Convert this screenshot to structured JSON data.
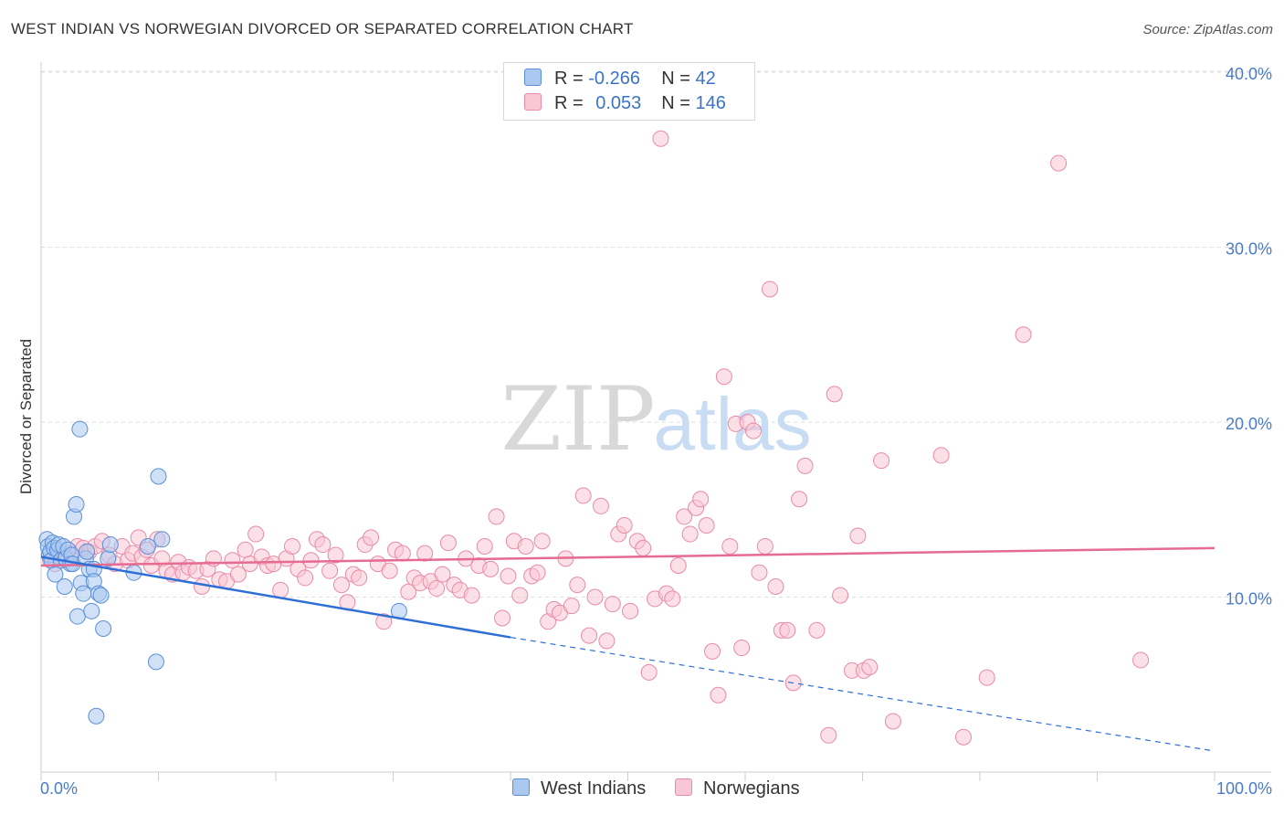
{
  "title": "WEST INDIAN VS NORWEGIAN DIVORCED OR SEPARATED CORRELATION CHART",
  "source": "Source: ZipAtlas.com",
  "watermark": {
    "part1": "ZIP",
    "part2": "atlas"
  },
  "legend_stats": {
    "rows": [
      {
        "r_label": "R =",
        "r_value": "-0.266",
        "n_label": "N =",
        "n_value": "42"
      },
      {
        "r_label": "R =",
        "r_value": "0.053",
        "n_label": "N =",
        "n_value": "146"
      }
    ]
  },
  "bottom_legend": {
    "west_indians": "West Indians",
    "norwegians": "Norwegians"
  },
  "colors": {
    "west_indians_fill": "#aac8f0",
    "west_indians_stroke": "#5b8fd6",
    "west_indians_line": "#2e6fd6",
    "norwegians_fill": "#f9c6d6",
    "norwegians_stroke": "#e88aa8",
    "norwegians_line": "#e56b93",
    "tick_label": "#4a7cc7",
    "grid": "#dddddd"
  },
  "chart_data": {
    "type": "scatter",
    "title": "WEST INDIAN VS NORWEGIAN DIVORCED OR SEPARATED CORRELATION CHART",
    "xlabel": "",
    "ylabel": "Divorced or Separated",
    "xlim": [
      0,
      100
    ],
    "ylim": [
      0,
      42
    ],
    "x_tick_labels": [
      "0.0%",
      "100.0%"
    ],
    "y_ticks": [
      10,
      20,
      30,
      40
    ],
    "y_tick_labels": [
      "10.0%",
      "20.0%",
      "30.0%",
      "40.0%"
    ],
    "grid": true,
    "series": [
      {
        "name": "West Indians",
        "r": -0.266,
        "n": 42,
        "trend": {
          "x0": 0,
          "y0": 12.3,
          "x1": 40,
          "y1": 7.7,
          "dashed_to_x": 100,
          "dashed_to_y": 1.2
        },
        "points": [
          [
            0.5,
            13.3
          ],
          [
            0.6,
            12.9
          ],
          [
            0.7,
            12.4
          ],
          [
            0.8,
            12.6
          ],
          [
            0.9,
            12.1
          ],
          [
            1.0,
            13.1
          ],
          [
            1.1,
            12.8
          ],
          [
            1.2,
            11.3
          ],
          [
            1.4,
            12.7
          ],
          [
            1.5,
            13.0
          ],
          [
            1.7,
            12.1
          ],
          [
            1.9,
            12.9
          ],
          [
            2.0,
            10.6
          ],
          [
            2.1,
            12.2
          ],
          [
            2.3,
            12.7
          ],
          [
            2.5,
            11.9
          ],
          [
            2.6,
            12.4
          ],
          [
            2.7,
            11.9
          ],
          [
            2.8,
            14.6
          ],
          [
            3.0,
            15.3
          ],
          [
            3.1,
            8.9
          ],
          [
            3.3,
            19.6
          ],
          [
            3.4,
            10.8
          ],
          [
            3.6,
            10.2
          ],
          [
            3.8,
            12.2
          ],
          [
            3.9,
            12.6
          ],
          [
            4.1,
            11.6
          ],
          [
            4.3,
            9.2
          ],
          [
            4.5,
            11.6
          ],
          [
            4.5,
            10.9
          ],
          [
            4.7,
            3.2
          ],
          [
            4.9,
            10.2
          ],
          [
            5.1,
            10.1
          ],
          [
            5.3,
            8.2
          ],
          [
            5.7,
            12.2
          ],
          [
            5.9,
            13.0
          ],
          [
            7.9,
            11.4
          ],
          [
            9.1,
            12.9
          ],
          [
            9.8,
            6.3
          ],
          [
            10.0,
            16.9
          ],
          [
            10.3,
            13.3
          ],
          [
            30.5,
            9.2
          ]
        ]
      },
      {
        "name": "Norwegians",
        "r": 0.053,
        "n": 146,
        "trend": {
          "x0": 0,
          "y0": 11.8,
          "x1": 100,
          "y1": 12.8
        },
        "points": [
          [
            0.8,
            12.1
          ],
          [
            1.2,
            11.9
          ],
          [
            1.6,
            12.3
          ],
          [
            2.1,
            12.1
          ],
          [
            2.6,
            12.5
          ],
          [
            3.1,
            12.9
          ],
          [
            3.6,
            12.8
          ],
          [
            4.1,
            12.6
          ],
          [
            4.6,
            12.9
          ],
          [
            5.2,
            13.2
          ],
          [
            5.8,
            12.4
          ],
          [
            6.3,
            11.9
          ],
          [
            6.9,
            12.9
          ],
          [
            7.4,
            12.1
          ],
          [
            7.8,
            12.5
          ],
          [
            8.3,
            13.4
          ],
          [
            8.6,
            12.3
          ],
          [
            9.0,
            12.7
          ],
          [
            9.4,
            11.8
          ],
          [
            9.9,
            13.3
          ],
          [
            10.3,
            12.2
          ],
          [
            10.7,
            11.5
          ],
          [
            11.2,
            11.3
          ],
          [
            11.7,
            12.0
          ],
          [
            12.1,
            11.4
          ],
          [
            12.6,
            11.7
          ],
          [
            13.2,
            11.5
          ],
          [
            13.7,
            10.6
          ],
          [
            14.2,
            11.6
          ],
          [
            14.7,
            12.2
          ],
          [
            15.2,
            11.0
          ],
          [
            15.8,
            10.9
          ],
          [
            16.3,
            12.1
          ],
          [
            16.8,
            11.3
          ],
          [
            17.4,
            12.7
          ],
          [
            17.8,
            11.9
          ],
          [
            18.3,
            13.6
          ],
          [
            18.8,
            12.3
          ],
          [
            19.3,
            11.8
          ],
          [
            19.8,
            11.9
          ],
          [
            20.4,
            10.4
          ],
          [
            20.9,
            12.2
          ],
          [
            21.4,
            12.9
          ],
          [
            21.9,
            11.6
          ],
          [
            22.5,
            11.1
          ],
          [
            23.0,
            12.1
          ],
          [
            23.5,
            13.3
          ],
          [
            24.0,
            13.0
          ],
          [
            24.6,
            11.5
          ],
          [
            25.1,
            12.4
          ],
          [
            25.6,
            10.7
          ],
          [
            26.1,
            9.7
          ],
          [
            26.6,
            11.3
          ],
          [
            27.1,
            11.1
          ],
          [
            27.6,
            13.0
          ],
          [
            28.1,
            13.4
          ],
          [
            28.7,
            11.9
          ],
          [
            29.2,
            8.6
          ],
          [
            29.7,
            11.5
          ],
          [
            30.2,
            12.7
          ],
          [
            30.8,
            12.5
          ],
          [
            31.3,
            10.3
          ],
          [
            31.8,
            11.1
          ],
          [
            32.3,
            10.8
          ],
          [
            32.7,
            12.5
          ],
          [
            33.2,
            10.9
          ],
          [
            33.7,
            10.5
          ],
          [
            34.2,
            11.3
          ],
          [
            34.7,
            13.1
          ],
          [
            35.2,
            10.7
          ],
          [
            35.7,
            10.4
          ],
          [
            36.2,
            12.2
          ],
          [
            36.7,
            10.1
          ],
          [
            37.3,
            11.8
          ],
          [
            37.8,
            12.9
          ],
          [
            38.3,
            11.6
          ],
          [
            38.8,
            14.6
          ],
          [
            39.3,
            8.8
          ],
          [
            39.8,
            11.2
          ],
          [
            40.3,
            13.2
          ],
          [
            40.8,
            10.1
          ],
          [
            41.3,
            12.9
          ],
          [
            41.8,
            11.2
          ],
          [
            42.3,
            11.4
          ],
          [
            42.7,
            13.2
          ],
          [
            43.2,
            8.6
          ],
          [
            43.7,
            9.3
          ],
          [
            44.2,
            9.1
          ],
          [
            44.7,
            12.2
          ],
          [
            45.2,
            9.5
          ],
          [
            45.7,
            10.7
          ],
          [
            46.2,
            15.8
          ],
          [
            46.7,
            7.8
          ],
          [
            47.2,
            10.0
          ],
          [
            47.7,
            15.2
          ],
          [
            48.2,
            7.5
          ],
          [
            48.7,
            9.6
          ],
          [
            49.2,
            13.6
          ],
          [
            49.7,
            14.1
          ],
          [
            50.2,
            9.2
          ],
          [
            50.8,
            13.2
          ],
          [
            51.3,
            12.8
          ],
          [
            51.8,
            5.7
          ],
          [
            52.3,
            9.9
          ],
          [
            52.8,
            36.2
          ],
          [
            53.3,
            10.2
          ],
          [
            53.8,
            9.9
          ],
          [
            54.3,
            11.8
          ],
          [
            54.8,
            14.6
          ],
          [
            55.3,
            13.6
          ],
          [
            55.8,
            15.1
          ],
          [
            56.2,
            15.6
          ],
          [
            56.7,
            14.1
          ],
          [
            57.2,
            6.9
          ],
          [
            57.7,
            4.4
          ],
          [
            58.2,
            22.6
          ],
          [
            58.7,
            12.9
          ],
          [
            59.2,
            19.9
          ],
          [
            59.7,
            7.1
          ],
          [
            60.2,
            20.0
          ],
          [
            60.7,
            19.5
          ],
          [
            61.2,
            11.4
          ],
          [
            61.7,
            12.9
          ],
          [
            62.1,
            27.6
          ],
          [
            62.6,
            10.6
          ],
          [
            63.1,
            8.1
          ],
          [
            63.6,
            8.1
          ],
          [
            64.1,
            5.1
          ],
          [
            64.6,
            15.6
          ],
          [
            65.1,
            17.5
          ],
          [
            66.1,
            8.1
          ],
          [
            67.1,
            2.1
          ],
          [
            67.6,
            21.6
          ],
          [
            68.1,
            10.1
          ],
          [
            69.1,
            5.8
          ],
          [
            69.6,
            13.5
          ],
          [
            70.1,
            5.8
          ],
          [
            70.6,
            6.0
          ],
          [
            71.6,
            17.8
          ],
          [
            72.6,
            2.9
          ],
          [
            76.7,
            18.1
          ],
          [
            78.6,
            2.0
          ],
          [
            80.6,
            5.4
          ],
          [
            83.7,
            25.0
          ],
          [
            86.7,
            34.8
          ],
          [
            93.7,
            6.4
          ]
        ]
      }
    ]
  }
}
